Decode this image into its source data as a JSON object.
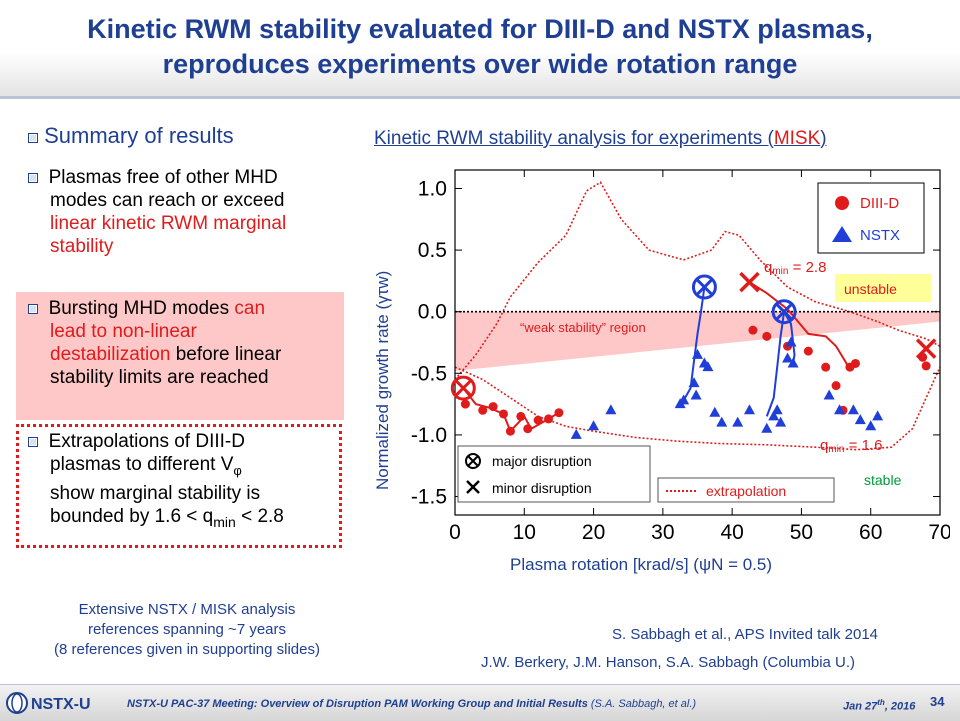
{
  "slide": {
    "title_line1": "Kinetic RWM stability evaluated for DIII-D and NSTX plasmas,",
    "title_line2": "reproduces experiments over wide rotation range"
  },
  "summary": {
    "heading": "Summary of results",
    "bullet1": [
      "Plasmas free of other MHD",
      "modes can reach or exceed",
      "linear kinetic RWM marginal",
      "stability"
    ],
    "bullet2_parts": {
      "line1a": "Bursting MHD modes ",
      "line1b": "can",
      "line2": "lead to non-linear",
      "line3a": "destabilization",
      "line3b": " before linear",
      "line4": "stability limits are reached"
    },
    "bullet3": {
      "line1": "Extrapolations of DIII-D",
      "line2a": "plasmas to different V",
      "line2b": "φ",
      "line3": "show marginal stability is",
      "line4a": "bounded by 1.6 < q",
      "line4b": "min",
      "line4c": " < 2.8"
    },
    "note": [
      "Extensive NSTX / MISK analysis",
      "references spanning ~7 years",
      "(8 references given in supporting slides)"
    ]
  },
  "chart_heading": {
    "prefix": "Kinetic RWM stability analysis for experiments (",
    "misk": "MISK",
    "suffix": ")"
  },
  "chart_data": {
    "type": "scatter",
    "xlabel": "Plasma rotation [krad/s] (ψN = 0.5)",
    "ylabel": "Normalized growth rate (γτw)",
    "xlim": [
      0,
      70
    ],
    "ylim": [
      -1.65,
      1.15
    ],
    "xticks": [
      "0",
      "10",
      "20",
      "30",
      "40",
      "50",
      "60",
      "70"
    ],
    "yticks": [
      "1.0",
      "0.5",
      "0.0",
      "-0.5",
      "-1.0",
      "-1.5"
    ],
    "colors": {
      "diiid": "#e01b1b",
      "nstx": "#1f3fd8",
      "weak_band": "#ffc8c8"
    },
    "legend": {
      "diiid": "DIII-D",
      "nstx": "NSTX",
      "major": "major disruption",
      "minor": "minor disruption",
      "extrapolation": "extrapolation"
    },
    "annotations": {
      "weak": "“weak stability” region",
      "unstable": "unstable",
      "stable": "stable",
      "qmin_high": "q",
      "qmin_high_sub": "min",
      "qmin_high_val": " = 2.8",
      "qmin_low": "q",
      "qmin_low_sub": "min",
      "qmin_low_val": " = 1.6"
    },
    "series": [
      {
        "name": "DIII-D",
        "values": [
          [
            1.5,
            -0.75
          ],
          [
            4,
            -0.8
          ],
          [
            5.5,
            -0.77
          ],
          [
            7,
            -0.83
          ],
          [
            8,
            -0.97
          ],
          [
            9.5,
            -0.85
          ],
          [
            10.5,
            -0.95
          ],
          [
            12,
            -0.88
          ],
          [
            13.5,
            -0.87
          ],
          [
            15,
            -0.82
          ],
          [
            43,
            -0.15
          ],
          [
            45,
            -0.2
          ],
          [
            48,
            -0.28
          ],
          [
            51,
            -0.32
          ],
          [
            53.5,
            -0.45
          ],
          [
            55,
            -0.6
          ],
          [
            56,
            -0.8
          ],
          [
            57,
            -0.45
          ],
          [
            57.8,
            -0.42
          ],
          [
            67.5,
            -0.37
          ],
          [
            68,
            -0.44
          ]
        ]
      },
      {
        "name": "NSTX",
        "values": [
          [
            17.5,
            -1.0
          ],
          [
            20,
            -0.93
          ],
          [
            22.5,
            -0.8
          ],
          [
            32.5,
            -0.75
          ],
          [
            33,
            -0.72
          ],
          [
            34.5,
            -0.58
          ],
          [
            34.8,
            -0.68
          ],
          [
            35,
            -0.35
          ],
          [
            36,
            -0.42
          ],
          [
            36.5,
            -0.45
          ],
          [
            37.5,
            -0.82
          ],
          [
            38.5,
            -0.9
          ],
          [
            40.8,
            -0.9
          ],
          [
            42.5,
            -0.8
          ],
          [
            45,
            -0.95
          ],
          [
            46,
            -0.85
          ],
          [
            46.5,
            -0.8
          ],
          [
            47,
            -0.9
          ],
          [
            48,
            -0.38
          ],
          [
            48.5,
            -0.25
          ],
          [
            48.8,
            -0.42
          ],
          [
            54,
            -0.68
          ],
          [
            55.5,
            -0.8
          ],
          [
            57.5,
            -0.8
          ],
          [
            58.5,
            -0.88
          ],
          [
            60,
            -0.93
          ],
          [
            61,
            -0.85
          ]
        ]
      }
    ],
    "major_disruptions": [
      [
        1.2,
        -0.62
      ],
      [
        36,
        0.2
      ],
      [
        47.5,
        0.0
      ]
    ],
    "minor_disruptions": [
      [
        42.5,
        0.24
      ],
      [
        68,
        -0.3
      ]
    ]
  },
  "citations": {
    "line1": "S. Sabbagh et al., APS Invited talk 2014",
    "line2": "J.W. Berkery, J.M. Hanson, S.A. Sabbagh (Columbia U.)"
  },
  "footer": {
    "meeting": "NSTX-U PAC-37 Meeting: Overview of Disruption PAM Working Group and Initial Results",
    "authors": " (S.A. Sabbagh, et al.)",
    "date": "Jan 27",
    "date_sup": "th",
    "date_year": ", 2016",
    "page": "34",
    "logo": "NSTX-U"
  }
}
